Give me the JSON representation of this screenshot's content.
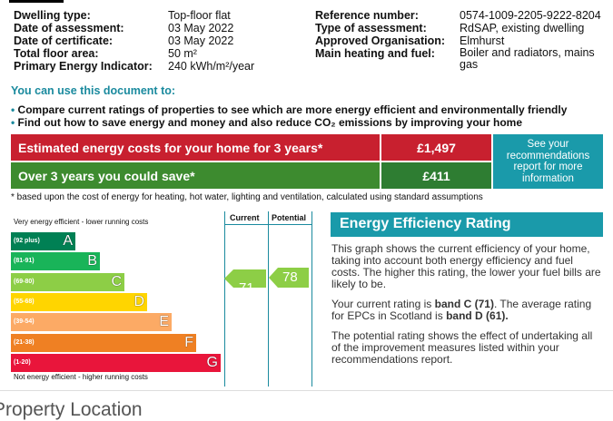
{
  "details": {
    "left": [
      {
        "label": "Dwelling type:",
        "value": "Top-floor flat"
      },
      {
        "label": "Date of assessment:",
        "value": "03 May 2022"
      },
      {
        "label": "Date of certificate:",
        "value": "03 May 2022"
      },
      {
        "label": "Total floor area:",
        "value": "50 m²"
      },
      {
        "label": "Primary Energy Indicator:",
        "value": "240 kWh/m²/year"
      }
    ],
    "right": [
      {
        "label": "Reference number:",
        "value": "0574-1009-2205-9222-8204"
      },
      {
        "label": "Type of assessment:",
        "value": "RdSAP, existing dwelling"
      },
      {
        "label": "Approved Organisation:",
        "value": "Elmhurst"
      },
      {
        "label": "Main heating and fuel:",
        "value": "Boiler and radiators, mains gas"
      }
    ]
  },
  "use_section": {
    "title": "You can use this document to:",
    "bullets": [
      "Compare current ratings of properties to see which are more energy efficient and environmentally friendly",
      "Find out how to save energy and money and also reduce CO₂ emissions by improving your home"
    ]
  },
  "costs": {
    "rows": [
      {
        "label": "Estimated energy costs for your home for 3 years*",
        "value": "£1,497"
      },
      {
        "label": "Over 3 years you could save*",
        "value": "£411"
      }
    ],
    "recommendation": "See your recommendations report for more information",
    "footnote": "* based upon the cost of energy for heating, hot water, lighting and ventilation, calculated using standard assumptions"
  },
  "rating": {
    "columns": [
      "Current",
      "Potential"
    ],
    "top_label": "Very energy efficient - lower running costs",
    "bottom_label": "Not energy efficient - higher running costs",
    "bands": [
      {
        "range": "(92 plus)",
        "letter": "A"
      },
      {
        "range": "(81-91)",
        "letter": "B"
      },
      {
        "range": "(69-80)",
        "letter": "C"
      },
      {
        "range": "(55-68)",
        "letter": "D"
      },
      {
        "range": "(39-54)",
        "letter": "E"
      },
      {
        "range": "(21-38)",
        "letter": "F"
      },
      {
        "range": "(1-20)",
        "letter": "G"
      }
    ],
    "current": "71",
    "potential": "78"
  },
  "eer": {
    "title": "Energy Efficiency Rating",
    "paragraphs": [
      "This graph shows the current efficiency of your home, taking into account both energy efficiency and fuel costs. The higher this rating, the lower your fuel bills are likely to be.",
      [
        "Your current rating is ",
        "band C (71)",
        ". The average rating for EPCs in Scotland is ",
        "band D (61)."
      ],
      "The potential rating shows the effect of undertaking all of the improvement measures listed within your recommendations report."
    ]
  },
  "next_section": {
    "title": "Property Location"
  }
}
